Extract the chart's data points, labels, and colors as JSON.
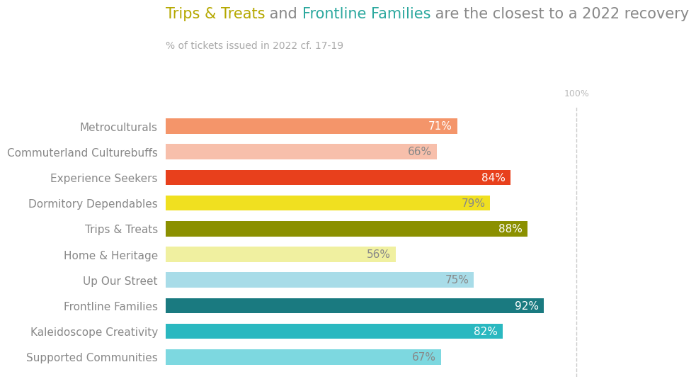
{
  "title_parts": [
    {
      "text": "Trips & Treats",
      "color": "#b5a800"
    },
    {
      "text": " and ",
      "color": "#888888"
    },
    {
      "text": "Frontline Families",
      "color": "#2ba89e"
    },
    {
      "text": " are the closest to a 2022 recovery",
      "color": "#888888"
    }
  ],
  "subtitle": "% of tickets issued in 2022 cf. 17-19",
  "categories": [
    "Metroculturals",
    "Commuterland Culturebuffs",
    "Experience Seekers",
    "Dormitory Dependables",
    "Trips & Treats",
    "Home & Heritage",
    "Up Our Street",
    "Frontline Families",
    "Kaleidoscope Creativity",
    "Supported Communities"
  ],
  "values": [
    71,
    66,
    84,
    79,
    88,
    56,
    75,
    92,
    82,
    67
  ],
  "bar_colors": [
    "#f4956a",
    "#f7bfab",
    "#e8401c",
    "#f0e020",
    "#8b9000",
    "#f0f0a0",
    "#a8dce8",
    "#1a7a80",
    "#2ab8c0",
    "#7dd8e0"
  ],
  "label_colors": [
    "#ffffff",
    "#888888",
    "#ffffff",
    "#888888",
    "#ffffff",
    "#888888",
    "#888888",
    "#ffffff",
    "#ffffff",
    "#888888"
  ],
  "xlim": [
    0,
    105
  ],
  "background_color": "#ffffff",
  "title_fontsize": 15,
  "subtitle_fontsize": 10,
  "bar_label_fontsize": 11,
  "category_fontsize": 11
}
